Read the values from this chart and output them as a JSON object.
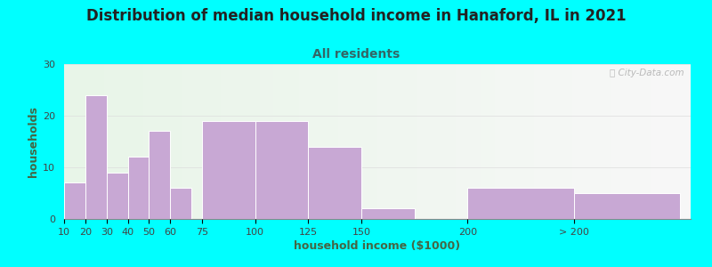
{
  "title": "Distribution of median household income in Hanaford, IL in 2021",
  "subtitle": "All residents",
  "xlabel": "household income ($1000)",
  "ylabel": "households",
  "background_color": "#00FFFF",
  "plot_bg_color_topleft": "#e8f5e8",
  "plot_bg_color_topright": "#f8f8f8",
  "plot_bg_color_bottomleft": "#f0faf0",
  "plot_bg_color_bottomright": "#ffffff",
  "bar_color": "#c8a8d4",
  "bar_edge_color": "#ffffff",
  "bar_values": [
    7,
    24,
    9,
    12,
    17,
    6,
    19,
    19,
    14,
    2,
    6,
    5
  ],
  "bar_widths": [
    10,
    10,
    10,
    10,
    10,
    10,
    25,
    25,
    25,
    25,
    50,
    50
  ],
  "bar_lefts": [
    10,
    20,
    30,
    40,
    50,
    60,
    75,
    100,
    125,
    150,
    200,
    250
  ],
  "xlim": [
    10,
    305
  ],
  "ylim": [
    0,
    30
  ],
  "yticks": [
    0,
    10,
    20,
    30
  ],
  "xtick_positions": [
    10,
    20,
    30,
    40,
    50,
    60,
    75,
    100,
    125,
    150,
    200,
    250
  ],
  "xtick_labels": [
    "10",
    "20",
    "30",
    "40",
    "50",
    "60",
    "75",
    "100",
    "125",
    "150",
    "200",
    "> 200"
  ],
  "title_fontsize": 12,
  "subtitle_fontsize": 10,
  "axis_label_fontsize": 9,
  "tick_fontsize": 8,
  "watermark_text": "ⓘ City-Data.com",
  "watermark_color": "#aaaaaa"
}
